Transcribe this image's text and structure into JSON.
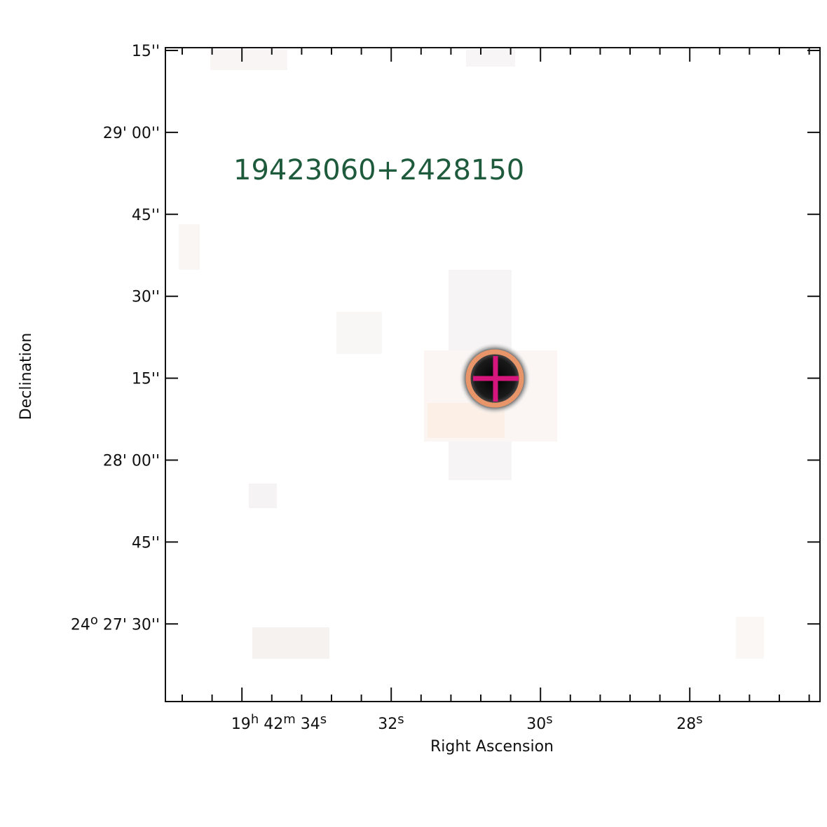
{
  "object_name": "19423060+2428150",
  "x_axis_label": "Right Ascension",
  "y_axis_label": "Declination",
  "x_tick_labels": [
    [
      {
        "text": "19",
        "sup": false
      },
      {
        "text": "h",
        "sup": true
      },
      {
        "text": " 42",
        "sup": false
      },
      {
        "text": "m",
        "sup": true
      },
      {
        "text": " 34",
        "sup": false
      },
      {
        "text": "s",
        "sup": true
      }
    ],
    [
      {
        "text": "32",
        "sup": false
      },
      {
        "text": "s",
        "sup": true
      }
    ],
    [
      {
        "text": "30",
        "sup": false
      },
      {
        "text": "s",
        "sup": true
      }
    ],
    [
      {
        "text": "28",
        "sup": false
      },
      {
        "text": "s",
        "sup": true
      }
    ]
  ],
  "y_tick_labels": [
    [
      {
        "text": "15''",
        "sup": false
      }
    ],
    [
      {
        "text": "29' 00''",
        "sup": false
      }
    ],
    [
      {
        "text": "45''",
        "sup": false
      }
    ],
    [
      {
        "text": "30''",
        "sup": false
      }
    ],
    [
      {
        "text": "15''",
        "sup": false
      }
    ],
    [
      {
        "text": "28' 00''",
        "sup": false
      }
    ],
    [
      {
        "text": "45''",
        "sup": false
      }
    ],
    [
      {
        "text": "24",
        "sup": false
      },
      {
        "text": "o",
        "sup": true
      },
      {
        "text": " 27' 30''",
        "sup": false
      }
    ]
  ]
}
